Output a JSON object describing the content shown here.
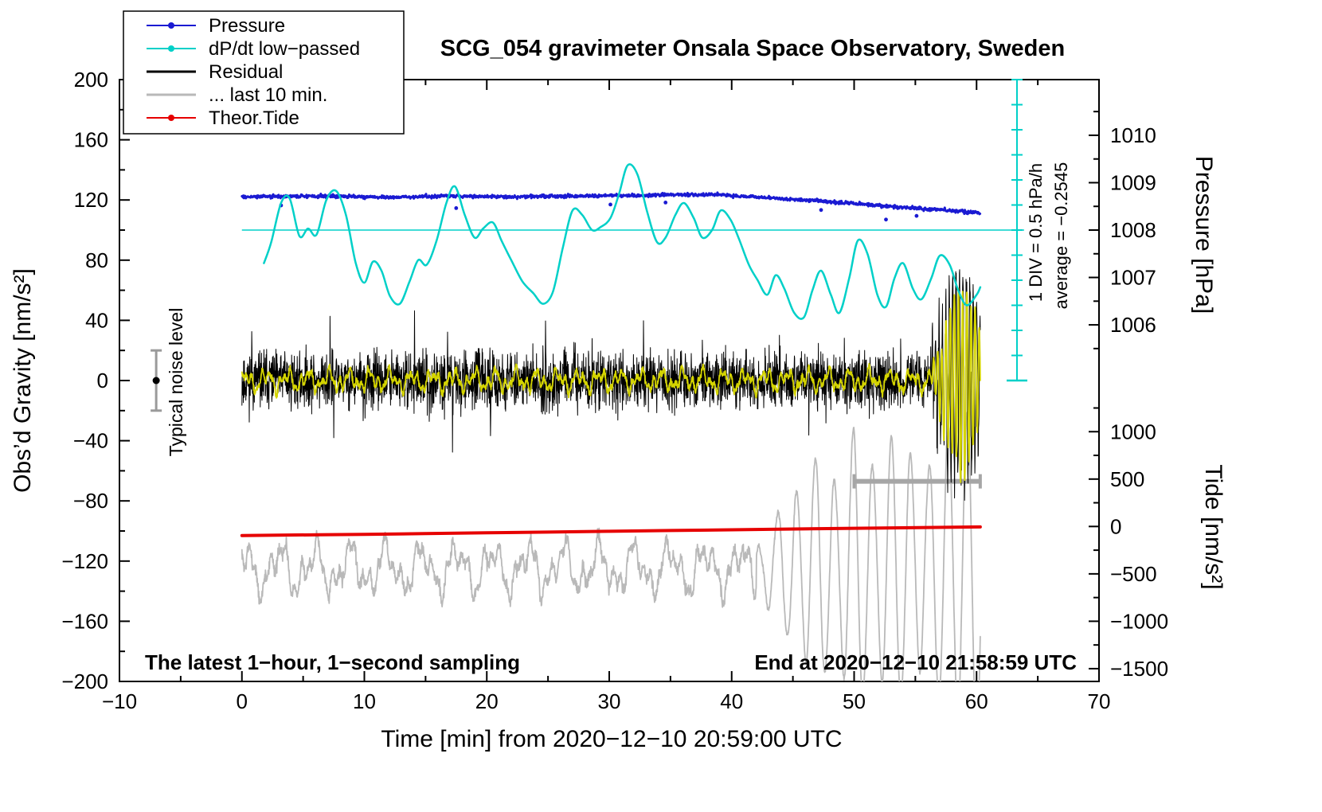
{
  "title": "SCG_054 gravimeter Onsala Space Observatory, Sweden",
  "legend": {
    "items": [
      {
        "label": "Pressure",
        "color": "#1a1ad2",
        "style": "line-dot"
      },
      {
        "label": "dP/dt low−passed",
        "color": "#00d0c8",
        "style": "line-dot"
      },
      {
        "label": "Residual",
        "color": "#000000",
        "style": "line"
      },
      {
        "label": "... last 10 min.",
        "color": "#b9b9b9",
        "style": "line"
      },
      {
        "label": "Theor.Tide",
        "color": "#e60000",
        "style": "line-dot"
      }
    ]
  },
  "axes": {
    "x": {
      "label": "Time [min] from 2020−12−10 20:59:00 UTC",
      "ticks": [
        -10,
        0,
        10,
        20,
        30,
        40,
        50,
        60,
        70
      ],
      "minor_step": 5
    },
    "gravity": {
      "label": "Obs’d Gravity [nm/s²]",
      "ticks": [
        -200,
        -160,
        -120,
        -80,
        -40,
        0,
        40,
        80,
        120,
        160,
        200
      ],
      "minor_step": 20
    },
    "pressure": {
      "label": "Pressure [hPa]",
      "ticks": [
        1006,
        1007,
        1008,
        1009,
        1010
      ],
      "minor_step": 0.5
    },
    "tide": {
      "label": "Tide [nm/s²]",
      "ticks": [
        -1500,
        -1000,
        -500,
        0,
        500,
        1000
      ],
      "minor_step": 250
    }
  },
  "annotations": {
    "div_scale": "1 DIV = 0.5 hPa/h",
    "average": "average = −0.2545",
    "noise_label": "Typical noise level"
  },
  "footers": {
    "left": "The latest 1−hour, 1−second sampling",
    "right": "End at 2020−12−10 21:58:59 UTC"
  },
  "chart_data": {
    "type": "line",
    "x_end": 60.3,
    "x_axis": {
      "label": "Time [min] from 2020−12−10 20:59:00 UTC",
      "range": [
        -10,
        70
      ],
      "tick_step": 10
    },
    "y_left": {
      "label": "Obs’d Gravity [nm/s²]",
      "range": [
        -200,
        200
      ],
      "tick_step": 40
    },
    "pressure_map": {
      "ref_hPa": 1008,
      "ref_gravity": 100,
      "gravity_per_hPa": 31.5
    },
    "tide_map": {
      "ref_tide": 0,
      "ref_gravity": -97,
      "gravity_per_unit": 0.063
    },
    "series": {
      "pressure": {
        "color": "#1a1ad2",
        "units": "hPa",
        "noise_std_gravity": 0.55,
        "points": [
          [
            0,
            1008.7
          ],
          [
            3,
            1008.71
          ],
          [
            6,
            1008.72
          ],
          [
            9,
            1008.71
          ],
          [
            12,
            1008.69
          ],
          [
            15,
            1008.71
          ],
          [
            18,
            1008.72
          ],
          [
            21,
            1008.7
          ],
          [
            24,
            1008.71
          ],
          [
            27,
            1008.72
          ],
          [
            30,
            1008.73
          ],
          [
            33,
            1008.73
          ],
          [
            36,
            1008.75
          ],
          [
            39,
            1008.74
          ],
          [
            41,
            1008.71
          ],
          [
            43,
            1008.68
          ],
          [
            45,
            1008.65
          ],
          [
            47,
            1008.62
          ],
          [
            49,
            1008.58
          ],
          [
            51,
            1008.54
          ],
          [
            53,
            1008.5
          ],
          [
            55,
            1008.46
          ],
          [
            57,
            1008.43
          ],
          [
            59,
            1008.39
          ],
          [
            60.3,
            1008.36
          ]
        ],
        "outlier_dots": [
          [
            3.2,
            -6
          ],
          [
            17.5,
            -8
          ],
          [
            30.1,
            -6
          ],
          [
            34.6,
            -5
          ],
          [
            47.3,
            -6
          ],
          [
            52.6,
            -9
          ],
          [
            55.1,
            -5
          ]
        ]
      },
      "dpdt": {
        "color": "#00d0c8",
        "centerline_gravity": 100,
        "points_gravity": [
          [
            1.8,
            78
          ],
          [
            2.4,
            92
          ],
          [
            3.2,
            118
          ],
          [
            3.9,
            121
          ],
          [
            4.7,
            96
          ],
          [
            5.4,
            101
          ],
          [
            6.1,
            97
          ],
          [
            6.9,
            120
          ],
          [
            7.7,
            126
          ],
          [
            8.5,
            110
          ],
          [
            9.3,
            78
          ],
          [
            10,
            65
          ],
          [
            10.7,
            79
          ],
          [
            11.4,
            73
          ],
          [
            12.1,
            56
          ],
          [
            12.9,
            51
          ],
          [
            13.7,
            66
          ],
          [
            14.4,
            80
          ],
          [
            15.1,
            77
          ],
          [
            15.9,
            93
          ],
          [
            16.7,
            118
          ],
          [
            17.4,
            129
          ],
          [
            18.2,
            110
          ],
          [
            19,
            95
          ],
          [
            19.7,
            101
          ],
          [
            20.5,
            105
          ],
          [
            21.2,
            93
          ],
          [
            22,
            80
          ],
          [
            22.9,
            66
          ],
          [
            23.8,
            58
          ],
          [
            24.6,
            51
          ],
          [
            25.4,
            59
          ],
          [
            26.2,
            88
          ],
          [
            27,
            113
          ],
          [
            27.8,
            110
          ],
          [
            28.6,
            100
          ],
          [
            29.3,
            102
          ],
          [
            30.1,
            108
          ],
          [
            30.8,
            124
          ],
          [
            31.5,
            143
          ],
          [
            32.3,
            137
          ],
          [
            33.1,
            112
          ],
          [
            33.9,
            92
          ],
          [
            34.6,
            95
          ],
          [
            35.4,
            110
          ],
          [
            36.1,
            118
          ],
          [
            36.9,
            108
          ],
          [
            37.6,
            95
          ],
          [
            38.4,
            100
          ],
          [
            39.1,
            113
          ],
          [
            39.9,
            107
          ],
          [
            40.6,
            94
          ],
          [
            41.4,
            77
          ],
          [
            42.1,
            67
          ],
          [
            42.9,
            57
          ],
          [
            43.6,
            70
          ],
          [
            44.3,
            61
          ],
          [
            45.1,
            45
          ],
          [
            45.9,
            42
          ],
          [
            46.6,
            60
          ],
          [
            47.3,
            73
          ],
          [
            48.1,
            57
          ],
          [
            48.8,
            45
          ],
          [
            49.6,
            68
          ],
          [
            50.3,
            93
          ],
          [
            51.1,
            84
          ],
          [
            51.9,
            57
          ],
          [
            52.6,
            49
          ],
          [
            53.3,
            68
          ],
          [
            54,
            78
          ],
          [
            54.8,
            61
          ],
          [
            55.5,
            54
          ],
          [
            56.3,
            68
          ],
          [
            57,
            83
          ],
          [
            57.8,
            77
          ],
          [
            58.5,
            60
          ],
          [
            59.2,
            50
          ],
          [
            60,
            57
          ],
          [
            60.3,
            62
          ]
        ]
      },
      "residual": {
        "color": "#000000",
        "baseline": 0,
        "noise_std": 9,
        "spikes": [
          [
            0.8,
            22
          ],
          [
            3.5,
            26
          ],
          [
            7.2,
            38
          ],
          [
            7.5,
            -34
          ],
          [
            9.9,
            -26
          ],
          [
            14.1,
            31
          ],
          [
            15.3,
            -27
          ],
          [
            16.8,
            37
          ],
          [
            17.2,
            -30
          ],
          [
            20.3,
            -28
          ],
          [
            22.6,
            24
          ],
          [
            24.8,
            38
          ],
          [
            25.1,
            -27
          ],
          [
            28.6,
            26
          ],
          [
            30.4,
            -24
          ],
          [
            32.8,
            38
          ],
          [
            35.2,
            -23
          ],
          [
            37.6,
            26
          ],
          [
            39.4,
            -24
          ],
          [
            41.2,
            28
          ],
          [
            43.9,
            25
          ],
          [
            46.3,
            -26
          ],
          [
            47.7,
            -24
          ],
          [
            49.2,
            22
          ],
          [
            51.4,
            -23
          ],
          [
            53.8,
            24
          ]
        ],
        "burst": {
          "start": 56.3,
          "center": 58.7,
          "sigma": 1.4,
          "amplitude": 72,
          "period": 0.28
        }
      },
      "residual_lowpass": {
        "color": "#d4d400",
        "noise_std": 1.1,
        "components": [
          [
            1.7,
            4.5,
            0.5
          ],
          [
            0.8,
            3,
            1.7
          ],
          [
            0.45,
            2.5,
            3
          ]
        ],
        "burst": {
          "start": 56.4,
          "center": 58.8,
          "sigma": 1.3,
          "amplitude": 62,
          "period": 0.34
        }
      },
      "last10": {
        "color": "#b9b9b9",
        "baseline": -125,
        "noise_std": 2.2,
        "wiggle": [
          [
            2.9,
            12,
            1.2
          ],
          [
            1.35,
            7,
            4.0
          ],
          [
            0.62,
            5,
            2.2
          ]
        ],
        "burst_start": 42,
        "burst_period": 1.55,
        "envelope": [
          [
            42,
            18
          ],
          [
            44,
            35
          ],
          [
            45.5,
            55
          ],
          [
            47,
            70
          ],
          [
            48.5,
            60
          ],
          [
            50,
            95
          ],
          [
            51.5,
            70
          ],
          [
            53,
            90
          ],
          [
            54.5,
            75
          ],
          [
            56,
            65
          ],
          [
            57.5,
            90
          ],
          [
            59,
            105
          ],
          [
            60.3,
            115
          ]
        ],
        "bar": {
          "x": [
            50,
            60.3
          ],
          "gravity": -67
        }
      },
      "tide": {
        "color": "#e60000",
        "points_gravity": [
          [
            0,
            -103
          ],
          [
            10,
            -102.2
          ],
          [
            20,
            -101.2
          ],
          [
            30,
            -100.2
          ],
          [
            40,
            -99.2
          ],
          [
            50,
            -98.2
          ],
          [
            60.3,
            -97.3
          ]
        ]
      }
    },
    "noise_marker": {
      "x": -7,
      "gravity": 0,
      "error": 20
    }
  }
}
